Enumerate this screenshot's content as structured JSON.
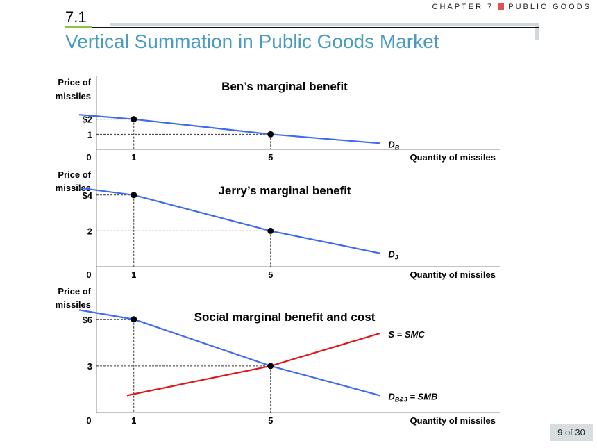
{
  "header": {
    "chapter": "CHAPTER 7",
    "topic": "PUBLIC GOODS",
    "section": "7.1",
    "title": "Vertical Summation in Public Goods Market",
    "page": "9 of 30"
  },
  "colors": {
    "demand": "#3d6bf0",
    "supply": "#e01818",
    "title": "#4a9bc0"
  },
  "chart_data": [
    {
      "type": "line",
      "title": "Ben’s marginal benefit",
      "xlabel": "Quantity of missiles",
      "ylabel": [
        "Price of",
        "missiles"
      ],
      "xticks": [
        "1",
        "5"
      ],
      "yticks": [
        {
          "v": 2,
          "label": "$2"
        },
        {
          "v": 1,
          "label": "1"
        }
      ],
      "origin_label": "0",
      "ylim": [
        0,
        3
      ],
      "series": [
        {
          "name": "D",
          "sub": "B",
          "suffix": "",
          "color": "#3d6bf0",
          "x": [
            -0.6,
            1,
            5,
            8.2
          ],
          "y": [
            2.3,
            2,
            1,
            0.4
          ]
        }
      ],
      "points": [
        {
          "x": 1,
          "y": 2
        },
        {
          "x": 5,
          "y": 1
        }
      ]
    },
    {
      "type": "line",
      "title": "Jerry’s marginal benefit",
      "xlabel": "Quantity of missiles",
      "ylabel": [
        "Price of",
        "missiles"
      ],
      "xticks": [
        "1",
        "5"
      ],
      "yticks": [
        {
          "v": 4,
          "label": "$4"
        },
        {
          "v": 2,
          "label": "2"
        }
      ],
      "origin_label": "0",
      "ylim": [
        0,
        5
      ],
      "series": [
        {
          "name": "D",
          "sub": "J",
          "suffix": "",
          "color": "#3d6bf0",
          "x": [
            -0.6,
            1,
            5,
            8.2
          ],
          "y": [
            4.4,
            4,
            2,
            0.75
          ]
        }
      ],
      "points": [
        {
          "x": 1,
          "y": 4
        },
        {
          "x": 5,
          "y": 2
        }
      ]
    },
    {
      "type": "line",
      "title": "Social marginal benefit and cost",
      "xlabel": "Quantity of missiles",
      "ylabel": [
        "Price of",
        "missiles"
      ],
      "xticks": [
        "1",
        "5"
      ],
      "yticks": [
        {
          "v": 6,
          "label": "$6"
        },
        {
          "v": 3,
          "label": "3"
        }
      ],
      "origin_label": "0",
      "ylim": [
        0,
        8
      ],
      "series": [
        {
          "name": "D",
          "sub": "B&J",
          "suffix": " = SMB",
          "color": "#3d6bf0",
          "x": [
            -0.6,
            1,
            5,
            8.2
          ],
          "y": [
            6.6,
            6,
            3,
            1.1
          ]
        },
        {
          "name": "S = SMC",
          "sub": "",
          "suffix": "",
          "color": "#e01818",
          "x": [
            0.8,
            5,
            8.2
          ],
          "y": [
            1.1,
            3,
            5.1
          ]
        }
      ],
      "points": [
        {
          "x": 1,
          "y": 6
        },
        {
          "x": 5,
          "y": 3
        }
      ]
    }
  ]
}
